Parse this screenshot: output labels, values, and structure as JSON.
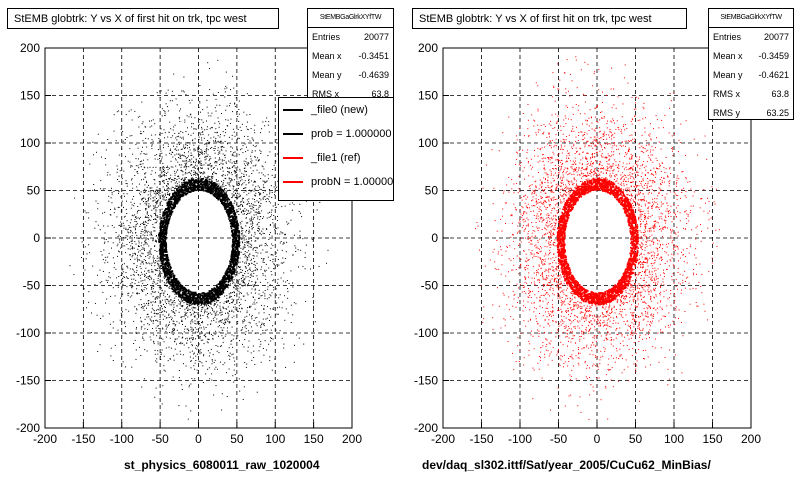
{
  "panels": [
    {
      "title": "StEMB globtrk: Y vs X of first hit on trk, tpc west",
      "stats": {
        "name": "StEMBGaGlrkXYfTW",
        "rows": [
          {
            "label": "Entries",
            "value": "20077"
          },
          {
            "label": "Mean x",
            "value": "-0.3451"
          },
          {
            "label": "Mean y",
            "value": "-0.4639"
          },
          {
            "label": "RMS x",
            "value": "63.8"
          }
        ]
      },
      "legend": [
        {
          "label": "_file0 (new)",
          "color": "#000000"
        },
        {
          "label": "prob = 1.000000",
          "color": "#000000"
        },
        {
          "label": "_file1 (ref)",
          "color": "#ff0000"
        },
        {
          "label": "probN = 1.000000",
          "color": "#ff0000"
        }
      ],
      "xtitle": "st_physics_6080011_raw_1020004"
    },
    {
      "title": "StEMB globtrk: Y vs X of first hit on trk, tpc west",
      "stats": {
        "name": "StEMBGaGlrkXYfTW",
        "rows": [
          {
            "label": "Entries",
            "value": "20077"
          },
          {
            "label": "Mean x",
            "value": "-0.3459"
          },
          {
            "label": "Mean y",
            "value": "-0.4621"
          },
          {
            "label": "RMS x",
            "value": "63.8"
          },
          {
            "label": "RMS y",
            "value": "63.25"
          }
        ]
      },
      "xtitle": "dev/daq_sl302.ittf/Sat/year_2005/CuCu62_MinBias/"
    }
  ],
  "chart_data": [
    {
      "type": "scatter",
      "title": "StEMB globtrk: Y vs X of first hit on trk, tpc west",
      "xlabel": "st_physics_6080011_raw_1020004",
      "ylabel": "",
      "xlim": [
        -200,
        200
      ],
      "ylim": [
        -200,
        200
      ],
      "xticks": [
        -200,
        -150,
        -100,
        -50,
        0,
        50,
        100,
        150,
        200
      ],
      "yticks": [
        -200,
        -150,
        -100,
        -50,
        0,
        50,
        100,
        150,
        200
      ],
      "grid": true,
      "color": "#000000",
      "entries": 20077,
      "mean_x": -0.3451,
      "mean_y": -0.4639,
      "rms_x": 63.8,
      "distribution": {
        "inner_hole_radius": 55,
        "dense_ring_radius": [
          55,
          68
        ],
        "outer_radius": 185
      }
    },
    {
      "type": "scatter",
      "title": "StEMB globtrk: Y vs X of first hit on trk, tpc west",
      "xlabel": "dev/daq_sl302.ittf/Sat/year_2005/CuCu62_MinBias/",
      "ylabel": "",
      "xlim": [
        -200,
        200
      ],
      "ylim": [
        -200,
        200
      ],
      "xticks": [
        -200,
        -150,
        -100,
        -50,
        0,
        50,
        100,
        150,
        200
      ],
      "yticks": [
        -200,
        -150,
        -100,
        -50,
        0,
        50,
        100,
        150,
        200
      ],
      "grid": true,
      "color": "#ff0000",
      "entries": 20077,
      "mean_x": -0.3459,
      "mean_y": -0.4621,
      "rms_x": 63.8,
      "rms_y": 63.25,
      "distribution": {
        "inner_hole_radius": 55,
        "dense_ring_radius": [
          55,
          68
        ],
        "outer_radius": 185
      }
    }
  ]
}
